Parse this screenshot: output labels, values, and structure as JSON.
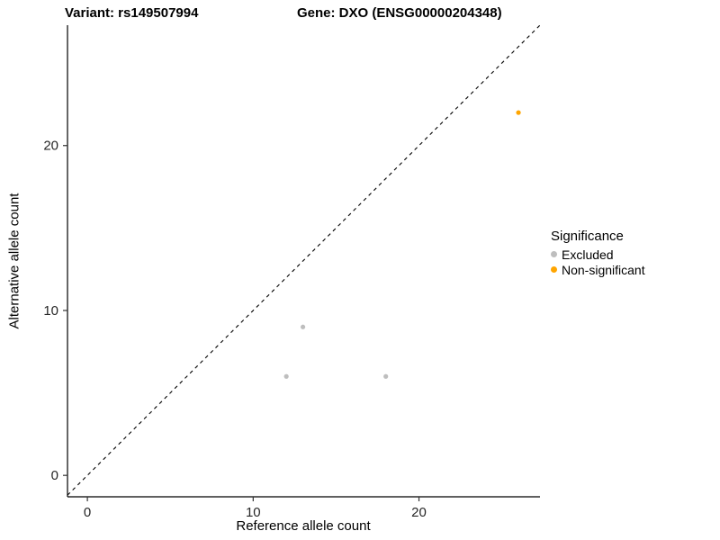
{
  "titles": {
    "variant": "Variant: rs149507994",
    "gene": "Gene: DXO (ENSG00000204348)"
  },
  "chart_data": {
    "type": "scatter",
    "title": "Variant: rs149507994    Gene: DXO (ENSG00000204348)",
    "xlabel": "Reference allele count",
    "ylabel": "Alternative allele count",
    "xlim": [
      -1.2,
      27.3
    ],
    "ylim": [
      -1.3,
      27.3
    ],
    "xticks": [
      0,
      10,
      20
    ],
    "yticks": [
      0,
      10,
      20
    ],
    "grid": false,
    "legend_title": "Significance",
    "legend_position": "right",
    "identity_line": {
      "style": "dashed",
      "color": "#000000",
      "from": [
        -1.2,
        -1.2
      ],
      "to": [
        27.3,
        27.3
      ]
    },
    "series": [
      {
        "name": "Excluded",
        "color": "#bebebe",
        "points": [
          [
            12,
            6
          ],
          [
            13,
            9
          ],
          [
            18,
            6
          ]
        ]
      },
      {
        "name": "Non-significant",
        "color": "#ffa500",
        "points": [
          [
            26,
            22
          ]
        ]
      }
    ]
  }
}
